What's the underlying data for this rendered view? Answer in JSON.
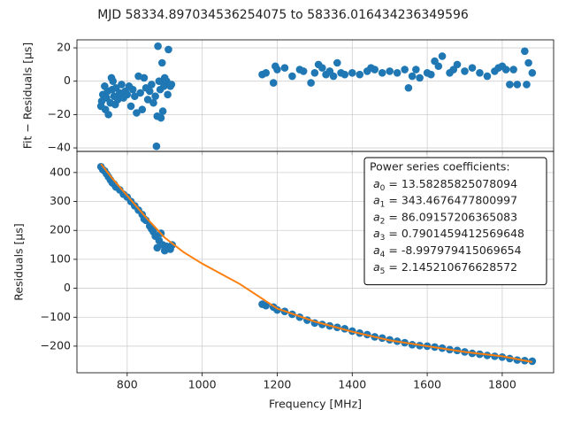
{
  "title": "MJD 58334.897034536254075 to 58336.016434236349596",
  "chart_data": [
    {
      "type": "scatter",
      "y_label": "Fit − Residuals [μs]",
      "grid": true,
      "xlim": [
        666,
        1937
      ],
      "xticks": [
        800,
        1000,
        1200,
        1400,
        1600,
        1800
      ],
      "ylim": [
        -42.1,
        24.8
      ],
      "yticks": [
        {
          "value": -40,
          "label": "−40"
        },
        {
          "value": -20,
          "label": "−20"
        },
        0,
        20
      ],
      "series": [
        {
          "type": "scatter",
          "color": "#1f77b4",
          "x": [
            730,
            732,
            735,
            740,
            742,
            745,
            748,
            750,
            755,
            758,
            760,
            762,
            765,
            768,
            770,
            775,
            780,
            785,
            790,
            795,
            800,
            805,
            810,
            815,
            820,
            825,
            830,
            835,
            840,
            845,
            850,
            855,
            860,
            865,
            870,
            875,
            878,
            880,
            882,
            885,
            888,
            890,
            893,
            895,
            898,
            900,
            903,
            905,
            908,
            910,
            915,
            918,
            1160,
            1170,
            1190,
            1195,
            1200,
            1220,
            1240,
            1260,
            1270,
            1290,
            1300,
            1310,
            1320,
            1330,
            1340,
            1350,
            1360,
            1370,
            1380,
            1400,
            1420,
            1440,
            1450,
            1460,
            1480,
            1500,
            1520,
            1540,
            1550,
            1560,
            1570,
            1580,
            1600,
            1610,
            1620,
            1630,
            1640,
            1660,
            1670,
            1680,
            1700,
            1720,
            1740,
            1760,
            1780,
            1790,
            1800,
            1810,
            1820,
            1830,
            1840,
            1860,
            1865,
            1870,
            1880
          ],
          "values": [
            -15,
            -12,
            -8,
            -3,
            -17,
            -10,
            -6,
            -20,
            -13,
            2,
            -5,
            0,
            -9,
            -14,
            -4,
            -11,
            -7,
            -2,
            -10,
            -6,
            -8,
            -3,
            -15,
            -5,
            -9,
            -19,
            3,
            -7,
            -17,
            2,
            -4,
            -11,
            -6,
            -2,
            -13,
            -9,
            -39,
            -21,
            21,
            0,
            -5,
            -22,
            11,
            -18,
            -3,
            2,
            -1,
            0,
            -8,
            19,
            -3,
            -2,
            4,
            5,
            -1,
            9,
            7,
            8,
            3,
            7,
            6,
            -1,
            5,
            10,
            8,
            4,
            6,
            3,
            11,
            5,
            4,
            5,
            4,
            6,
            8,
            7,
            5,
            6,
            5,
            7,
            -4,
            3,
            7,
            2,
            5,
            4,
            12,
            9,
            15,
            5,
            7,
            10,
            6,
            8,
            5,
            3,
            6,
            8,
            9,
            7,
            -2,
            7,
            -2,
            18,
            -2,
            11,
            5
          ]
        }
      ]
    },
    {
      "type": "scatter",
      "y_label": "Residuals [μs]",
      "x_label": "Frequency [MHz]",
      "grid": true,
      "xlim": [
        666,
        1937
      ],
      "xticks": [
        800,
        1000,
        1200,
        1400,
        1600,
        1800
      ],
      "ylim": [
        -292,
        473
      ],
      "yticks": [
        {
          "value": -200,
          "label": "−200"
        },
        {
          "value": -100,
          "label": "−100"
        },
        0,
        100,
        200,
        300,
        400
      ],
      "series": [
        {
          "type": "scatter",
          "color": "#1f77b4",
          "x": [
            730,
            735,
            740,
            745,
            750,
            755,
            760,
            765,
            770,
            780,
            790,
            800,
            810,
            820,
            830,
            840,
            845,
            850,
            860,
            865,
            870,
            875,
            880,
            885,
            890,
            895,
            900,
            905,
            910,
            915,
            920,
            1160,
            1170,
            1190,
            1200,
            1220,
            1240,
            1260,
            1280,
            1300,
            1320,
            1340,
            1360,
            1380,
            1400,
            1420,
            1440,
            1460,
            1480,
            1500,
            1520,
            1540,
            1560,
            1580,
            1600,
            1620,
            1640,
            1660,
            1680,
            1700,
            1720,
            1740,
            1760,
            1780,
            1800,
            1820,
            1840,
            1860,
            1880
          ],
          "values": [
            420,
            410,
            405,
            395,
            385,
            375,
            365,
            360,
            350,
            340,
            325,
            315,
            300,
            285,
            270,
            255,
            240,
            235,
            215,
            205,
            195,
            180,
            140,
            165,
            190,
            150,
            130,
            145,
            140,
            135,
            150,
            -55,
            -60,
            -65,
            -75,
            -80,
            -90,
            -100,
            -110,
            -120,
            -125,
            -130,
            -135,
            -140,
            -148,
            -155,
            -160,
            -168,
            -172,
            -178,
            -183,
            -188,
            -195,
            -198,
            -200,
            -203,
            -207,
            -212,
            -215,
            -220,
            -225,
            -228,
            -232,
            -235,
            -238,
            -243,
            -248,
            -250,
            -252
          ]
        },
        {
          "type": "line",
          "color": "#ff7f0e",
          "x": [
            730,
            760,
            800,
            850,
            900,
            950,
            1000,
            1100,
            1200,
            1300,
            1400,
            1500,
            1600,
            1700,
            1800,
            1880
          ],
          "values": [
            430,
            380,
            320,
            245,
            175,
            125,
            85,
            15,
            -70,
            -115,
            -150,
            -180,
            -200,
            -220,
            -235,
            -255
          ]
        }
      ],
      "legend": {
        "position": "upper right",
        "title": "Power series coefficients:",
        "entries": [
          {
            "symbol": "a",
            "sub": "0",
            "rest": " = 13.58285825078094"
          },
          {
            "symbol": "a",
            "sub": "1",
            "rest": " = 343.4676477800997"
          },
          {
            "symbol": "a",
            "sub": "2",
            "rest": " = 86.09157206365083"
          },
          {
            "symbol": "a",
            "sub": "3",
            "rest": " = 0.7901459412569648"
          },
          {
            "symbol": "a",
            "sub": "4",
            "rest": " = -8.997979415069654"
          },
          {
            "symbol": "a",
            "sub": "5",
            "rest": " = 2.145210676628572"
          }
        ]
      }
    }
  ]
}
